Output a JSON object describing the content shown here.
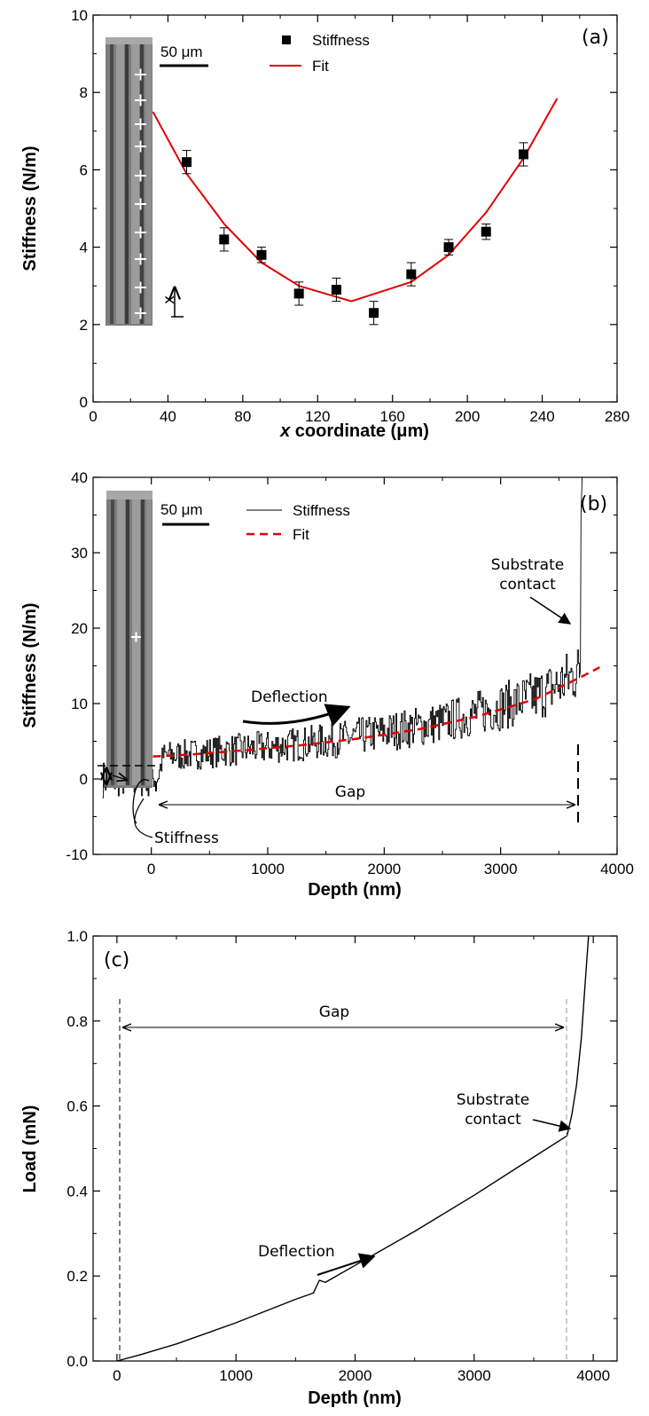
{
  "chart_data": [
    {
      "type": "scatter",
      "panel_label": "(a)",
      "xlabel_italic": "x",
      "xlabel_rest": " coordinate (μm)",
      "ylabel": "Stiffness (N/m)",
      "xlim": [
        0,
        280
      ],
      "ylim": [
        0,
        10
      ],
      "xticks": [
        "0",
        "40",
        "80",
        "120",
        "160",
        "200",
        "240",
        "280"
      ],
      "yticks": [
        "0",
        "2",
        "4",
        "6",
        "8",
        "10"
      ],
      "legend_position": "top-center",
      "series": [
        {
          "name": "Stiffness",
          "style": "markers-with-error-bars",
          "x": [
            50,
            70,
            90,
            110,
            130,
            150,
            170,
            190,
            210,
            230
          ],
          "y": [
            6.2,
            4.2,
            3.8,
            2.8,
            2.9,
            2.3,
            3.3,
            4.0,
            4.4,
            6.4
          ],
          "yerr": [
            0.3,
            0.3,
            0.2,
            0.3,
            0.3,
            0.3,
            0.3,
            0.2,
            0.2,
            0.3
          ]
        },
        {
          "name": "Fit",
          "style": "line",
          "x": [
            32,
            50,
            70,
            90,
            110,
            138,
            170,
            190,
            210,
            230,
            248
          ],
          "y": [
            7.5,
            5.9,
            4.6,
            3.6,
            3.0,
            2.6,
            3.1,
            3.8,
            4.9,
            6.3,
            7.85
          ]
        }
      ],
      "inset": {
        "scale_label": "50 μm",
        "arrow_label": "x"
      }
    },
    {
      "type": "line",
      "panel_label": "(b)",
      "xlabel": "Depth (nm)",
      "ylabel": "Stiffness (N/m)",
      "xlim": [
        -500,
        4000
      ],
      "ylim": [
        -10,
        40
      ],
      "xticks": [
        "0",
        "1000",
        "2000",
        "3000",
        "4000"
      ],
      "yticks": [
        "-10",
        "0",
        "10",
        "20",
        "30",
        "40"
      ],
      "legend_position": "top-center",
      "series": [
        {
          "name": "Stiffness",
          "style": "noisy-step-line",
          "x": [
            -420,
            -300,
            -200,
            -100,
            0,
            50,
            100,
            300,
            600,
            1000,
            1500,
            2000,
            2500,
            3000,
            3300,
            3500,
            3620,
            3680,
            3690,
            3700
          ],
          "y": [
            0,
            0,
            0,
            0,
            0,
            0,
            3,
            3.2,
            3.7,
            4.2,
            5.0,
            6.2,
            7.5,
            9.6,
            11.0,
            12.5,
            13.8,
            14.3,
            35,
            40
          ]
        },
        {
          "name": "Fit",
          "style": "dashed",
          "x": [
            -100,
            300,
            800,
            1300,
            1800,
            2300,
            2800,
            3300,
            3700,
            3850
          ],
          "y": [
            2.9,
            3.2,
            3.8,
            4.5,
            5.4,
            6.6,
            8.3,
            10.6,
            13.6,
            14.8
          ]
        }
      ],
      "annotations": {
        "substrate_contact": [
          "Substrate",
          "contact"
        ],
        "deflection": "Deflection",
        "gap": "Gap",
        "stiffness": "Stiffness"
      },
      "inset": {
        "scale_label": "50 μm"
      }
    },
    {
      "type": "line",
      "panel_label": "(c)",
      "xlabel": "Depth (nm)",
      "ylabel": "Load (mN)",
      "xlim": [
        -200,
        4200
      ],
      "ylim": [
        0,
        1.0
      ],
      "xticks": [
        "0",
        "1000",
        "2000",
        "3000",
        "4000"
      ],
      "yticks": [
        "0.0",
        "0.2",
        "0.4",
        "0.6",
        "0.8",
        "1.0"
      ],
      "series": [
        {
          "style": "line",
          "x": [
            0,
            200,
            500,
            1000,
            1500,
            1650,
            1700,
            1750,
            2000,
            2500,
            3000,
            3500,
            3780,
            3820,
            3860,
            3900,
            3930,
            3960
          ],
          "y": [
            0.0,
            0.015,
            0.04,
            0.09,
            0.145,
            0.16,
            0.19,
            0.185,
            0.225,
            0.305,
            0.39,
            0.48,
            0.53,
            0.58,
            0.65,
            0.76,
            0.88,
            1.0
          ]
        }
      ],
      "annotations": {
        "gap": "Gap",
        "substrate_contact": [
          "Substrate",
          "contact"
        ],
        "deflection": "Deflection"
      }
    }
  ]
}
